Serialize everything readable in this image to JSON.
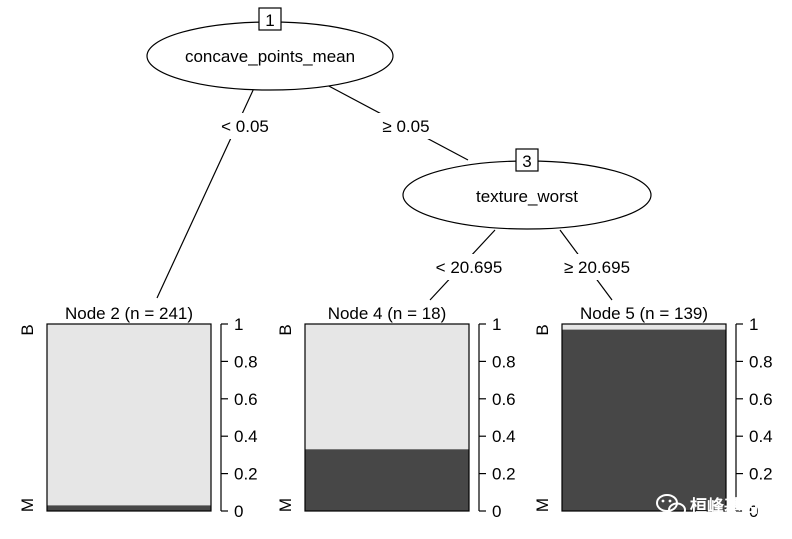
{
  "inner_nodes": [
    {
      "id": "1",
      "variable": "concave_points_mean"
    },
    {
      "id": "3",
      "variable": "texture_worst"
    }
  ],
  "edges": [
    {
      "label": "< 0.05"
    },
    {
      "label": "≥ 0.05"
    },
    {
      "label": "< 20.695"
    },
    {
      "label": "≥ 20.695"
    }
  ],
  "chart_data": {
    "type": "bar",
    "categories": [
      "B",
      "M"
    ],
    "y_ticks": [
      "0",
      "0.2",
      "0.4",
      "0.6",
      "0.8",
      "1"
    ],
    "ylim": [
      0,
      1
    ],
    "colors": {
      "B": "#e6e6e6",
      "M": "#474747"
    },
    "terminal_nodes": [
      {
        "title": "Node 2 (n = 241)",
        "proportion_M": 0.03,
        "proportion_B": 0.97
      },
      {
        "title": "Node 4 (n = 18)",
        "proportion_M": 0.33,
        "proportion_B": 0.67
      },
      {
        "title": "Node 5 (n = 139)",
        "proportion_M": 0.97,
        "proportion_B": 0.03
      }
    ]
  },
  "watermark": {
    "text": "桓峰基因",
    "icon": "wechat-icon"
  }
}
